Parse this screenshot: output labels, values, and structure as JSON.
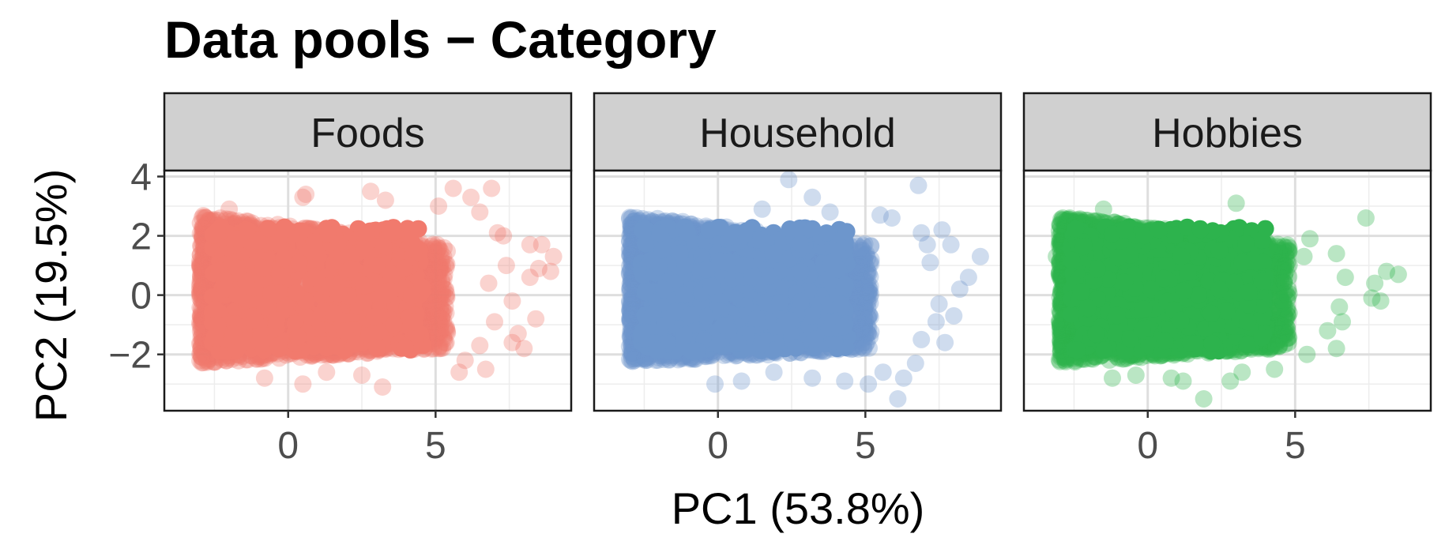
{
  "chart_data": {
    "type": "scatter",
    "title": "Data pools − Category",
    "xlabel": "PC1 (53.8%)",
    "ylabel": "PC2 (19.5%)",
    "xlim": [
      -4.2,
      9.6
    ],
    "ylim": [
      -3.9,
      4.2
    ],
    "x_ticks": [
      {
        "v": 0,
        "label": "0"
      },
      {
        "v": 5,
        "label": "5"
      }
    ],
    "y_ticks": [
      {
        "v": 4,
        "label": "4"
      },
      {
        "v": 2,
        "label": "2"
      },
      {
        "v": 0,
        "label": "0"
      },
      {
        "v": -2,
        "label": "−2"
      }
    ],
    "grid": true,
    "legend": "none",
    "panels": [
      {
        "name": "Foods",
        "color": "#F17A6D",
        "core": {
          "x_range": [
            -3,
            5.4
          ],
          "y_range": [
            -2.3,
            2.7
          ]
        },
        "outliers": [
          [
            0.6,
            3.4
          ],
          [
            0.5,
            3.3
          ],
          [
            2.8,
            3.5
          ],
          [
            3.3,
            3.2
          ],
          [
            5.6,
            3.6
          ],
          [
            6.2,
            3.3
          ],
          [
            6.9,
            3.6
          ],
          [
            6.5,
            2.8
          ],
          [
            7.3,
            2.0
          ],
          [
            7.1,
            2.1
          ],
          [
            8.2,
            1.7
          ],
          [
            8.6,
            1.7
          ],
          [
            9.0,
            1.3
          ],
          [
            8.9,
            0.8
          ],
          [
            8.5,
            0.9
          ],
          [
            8.2,
            0.6
          ],
          [
            7.6,
            -0.2
          ],
          [
            8.4,
            -0.8
          ],
          [
            7.8,
            -1.3
          ],
          [
            8.0,
            -1.8
          ],
          [
            7.6,
            -1.6
          ],
          [
            6.5,
            -1.7
          ],
          [
            6.0,
            -2.2
          ],
          [
            6.7,
            -2.5
          ],
          [
            5.8,
            -2.6
          ],
          [
            3.2,
            -3.1
          ],
          [
            0.5,
            -3.0
          ],
          [
            -0.8,
            -2.8
          ],
          [
            1.3,
            -2.6
          ],
          [
            2.5,
            -2.7
          ],
          [
            7.0,
            -0.9
          ],
          [
            6.8,
            0.4
          ],
          [
            7.4,
            1.0
          ],
          [
            5.1,
            3.0
          ],
          [
            -2.0,
            2.9
          ]
        ]
      },
      {
        "name": "Household",
        "color": "#6D96CC",
        "core": {
          "x_range": [
            -3,
            5.2
          ],
          "y_range": [
            -2.3,
            2.7
          ]
        },
        "outliers": [
          [
            2.4,
            3.9
          ],
          [
            3.2,
            3.3
          ],
          [
            6.8,
            3.7
          ],
          [
            1.5,
            2.9
          ],
          [
            3.8,
            2.8
          ],
          [
            5.5,
            2.7
          ],
          [
            5.9,
            2.6
          ],
          [
            6.9,
            2.1
          ],
          [
            7.6,
            2.2
          ],
          [
            7.1,
            1.7
          ],
          [
            7.9,
            1.7
          ],
          [
            8.9,
            1.3
          ],
          [
            7.2,
            1.1
          ],
          [
            8.5,
            0.6
          ],
          [
            8.2,
            0.2
          ],
          [
            7.5,
            -0.3
          ],
          [
            8.0,
            -0.7
          ],
          [
            7.4,
            -0.9
          ],
          [
            6.9,
            -1.5
          ],
          [
            7.7,
            -1.6
          ],
          [
            6.7,
            -2.3
          ],
          [
            5.6,
            -2.6
          ],
          [
            6.3,
            -2.8
          ],
          [
            5.1,
            -3.0
          ],
          [
            4.3,
            -2.9
          ],
          [
            3.2,
            -2.8
          ],
          [
            0.8,
            -2.9
          ],
          [
            -0.1,
            -3.0
          ],
          [
            6.1,
            -3.5
          ],
          [
            1.9,
            -2.6
          ]
        ]
      },
      {
        "name": "Hobbies",
        "color": "#2DB34D",
        "core": {
          "x_range": [
            -3,
            4.8
          ],
          "y_range": [
            -2.3,
            2.7
          ]
        },
        "outliers": [
          [
            -3.1,
            1.3
          ],
          [
            4.4,
            1.6
          ],
          [
            5.3,
            1.3
          ],
          [
            5.5,
            1.9
          ],
          [
            7.4,
            2.6
          ],
          [
            6.4,
            1.4
          ],
          [
            6.7,
            0.6
          ],
          [
            7.7,
            0.4
          ],
          [
            8.1,
            0.8
          ],
          [
            8.5,
            0.7
          ],
          [
            7.6,
            -0.1
          ],
          [
            7.9,
            -0.2
          ],
          [
            6.5,
            -0.4
          ],
          [
            6.6,
            -0.9
          ],
          [
            6.1,
            -1.2
          ],
          [
            6.4,
            -1.8
          ],
          [
            5.4,
            -2.0
          ],
          [
            4.3,
            -2.5
          ],
          [
            3.2,
            -2.6
          ],
          [
            2.8,
            -2.9
          ],
          [
            1.9,
            -3.5
          ],
          [
            1.2,
            -2.9
          ],
          [
            0.8,
            -2.8
          ],
          [
            -0.4,
            -2.7
          ],
          [
            -1.2,
            -2.8
          ],
          [
            3.0,
            3.1
          ],
          [
            -1.5,
            2.9
          ]
        ]
      }
    ]
  }
}
